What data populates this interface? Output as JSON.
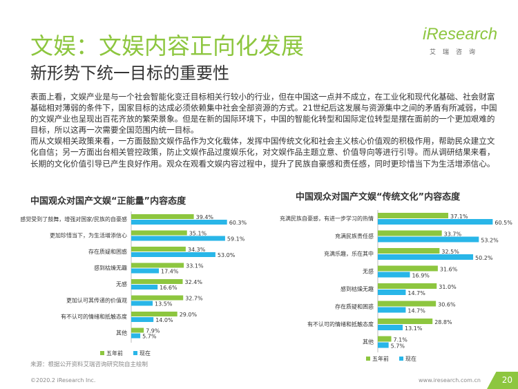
{
  "header": {
    "title": "文娱：文娱内容正向化发展",
    "subtitle": "新形势下统一目标的重要性",
    "logo_brand": "iResearch",
    "logo_cn": "艾瑞咨询"
  },
  "body_paragraphs": [
    "表面上看，文娱产业是与一个社会智能化变迁目标相关行较小的行业，但在中国这一点并不成立，在工业化和现代化基础、社会财富基础相对薄弱的条件下，国家目标的达成必须依赖集中社会全部资源的方式。21世纪后这发展与资源集中之间的矛盾有所减弱，中国的文娱产业也呈现出百花齐放的繁荣景象。但是在新的国际环境下，中国的智能化转型和国际定位转型是摆在面前的一个更加艰难的目标，所以这再一次需要全国范围内统一目标。",
    "而从文娱相关政策来看，一方面鼓励文娱作品作为文化载体，发挥中国传统文化和社会主义核心价值观的积极作用，帮助民众建立文化自信；另一方面出台相关管控政策，防止文娱作品过度娱乐化，对文娱作品主题立意、价值导向等进行引导。而从调研结果来看，长期的文化价值引导已产生良好作用。观众在观看文娱内容过程中，提升了民族自豪感和责任感，同时更珍惜当下为生活增添信心。"
  ],
  "colors": {
    "before": "#8dc63f",
    "now": "#29b6e8",
    "accent": "#8dc63f"
  },
  "chart_data": [
    {
      "type": "bar",
      "orientation": "horizontal",
      "title": "中国观众对国产文娱“正能量”内容态度",
      "categories": [
        "感觉受到了鼓舞，增强对国家/民族的自豪感",
        "更加珍惜当下，为生活增添信心",
        "存在质疑和困惑",
        "感到枯燥无趣",
        "无感",
        "更加认可其传递的价值观",
        "有不认可的情绪和抵触态度",
        "其他"
      ],
      "series": [
        {
          "name": "五年前",
          "values": [
            39.4,
            35.1,
            34.3,
            33.1,
            32.4,
            32.7,
            29.0,
            7.9
          ]
        },
        {
          "name": "现在",
          "values": [
            60.3,
            59.1,
            53.0,
            17.4,
            16.6,
            13.5,
            14.0,
            5.7
          ]
        }
      ],
      "value_suffix": "%",
      "legend_position": "bottom"
    },
    {
      "type": "bar",
      "orientation": "horizontal",
      "title": "中国观众对国产文娱“传统文化”内容态度",
      "categories": [
        "充满民族自豪感，有进一步学习的热情",
        "充满民族责任感",
        "充满乐趣，乐在其中",
        "无感",
        "感到枯燥无趣",
        "存在质疑和困惑",
        "有不认可的情绪和抵触态度",
        "其他"
      ],
      "series": [
        {
          "name": "五年前",
          "values": [
            37.1,
            33.7,
            32.5,
            31.6,
            31.0,
            30.6,
            28.8,
            7.1
          ]
        },
        {
          "name": "现在",
          "values": [
            60.5,
            53.2,
            50.2,
            16.9,
            14.7,
            14.7,
            13.1,
            5.7
          ]
        }
      ],
      "value_suffix": "%",
      "legend_position": "bottom"
    }
  ],
  "source": "来源：根据公开资料艾瑞咨询研究院自主绘制",
  "footer": {
    "copyright": "©2020.2 iResearch Inc.",
    "website": "www.iresearch.com.cn",
    "page_number": "20"
  }
}
